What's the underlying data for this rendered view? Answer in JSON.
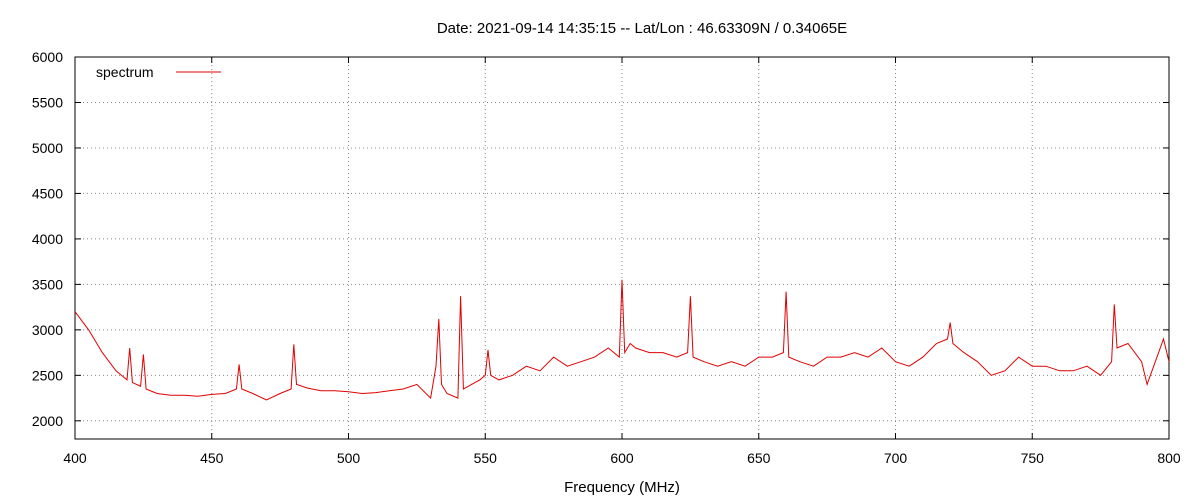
{
  "chart_data": {
    "type": "line",
    "title": "Date: 2021-09-14 14:35:15  --  Lat/Lon : 46.63309N / 0.34065E",
    "xlabel": "Frequency (MHz)",
    "ylabel": "",
    "xlim": [
      400,
      800
    ],
    "ylim": [
      1800,
      6000
    ],
    "xticks": [
      400,
      450,
      500,
      550,
      600,
      650,
      700,
      750,
      800
    ],
    "yticks": [
      2000,
      2500,
      3000,
      3500,
      4000,
      4500,
      5000,
      5500,
      6000
    ],
    "grid": true,
    "legend_position": "top-left",
    "series_color": "#e00000",
    "series": [
      {
        "name": "spectrum",
        "x": [
          400,
          405,
          410,
          415,
          419,
          420,
          421,
          424,
          425,
          426,
          430,
          435,
          440,
          445,
          450,
          455,
          459,
          460,
          461,
          465,
          470,
          475,
          479,
          480,
          481,
          485,
          490,
          495,
          500,
          505,
          510,
          515,
          520,
          525,
          530,
          532,
          533,
          534,
          536,
          540,
          541,
          542,
          545,
          548,
          550,
          551,
          552,
          555,
          560,
          565,
          570,
          575,
          580,
          585,
          590,
          595,
          599,
          600,
          601,
          603,
          605,
          610,
          615,
          620,
          624,
          625,
          626,
          630,
          635,
          640,
          645,
          650,
          655,
          659,
          660,
          661,
          665,
          670,
          675,
          680,
          685,
          690,
          695,
          700,
          705,
          710,
          715,
          719,
          720,
          721,
          725,
          730,
          735,
          740,
          745,
          750,
          755,
          760,
          765,
          770,
          775,
          779,
          780,
          781,
          785,
          790,
          792,
          795,
          798,
          800
        ],
        "values": [
          3200,
          3000,
          2750,
          2550,
          2450,
          2800,
          2420,
          2380,
          2730,
          2350,
          2300,
          2280,
          2280,
          2270,
          2290,
          2300,
          2350,
          2620,
          2350,
          2300,
          2230,
          2300,
          2350,
          2840,
          2400,
          2360,
          2330,
          2330,
          2320,
          2300,
          2310,
          2330,
          2350,
          2400,
          2250,
          2600,
          3120,
          2400,
          2300,
          2250,
          3370,
          2350,
          2400,
          2450,
          2500,
          2780,
          2500,
          2450,
          2500,
          2600,
          2550,
          2700,
          2600,
          2650,
          2700,
          2800,
          2700,
          3550,
          2750,
          2850,
          2800,
          2750,
          2750,
          2700,
          2750,
          3370,
          2700,
          2650,
          2600,
          2650,
          2600,
          2700,
          2700,
          2750,
          3420,
          2700,
          2650,
          2600,
          2700,
          2700,
          2750,
          2700,
          2800,
          2650,
          2600,
          2700,
          2850,
          2900,
          3080,
          2850,
          2750,
          2650,
          2500,
          2550,
          2700,
          2600,
          2600,
          2550,
          2550,
          2600,
          2500,
          2650,
          3280,
          2800,
          2850,
          2650,
          2400,
          2650,
          2900,
          2650
        ]
      }
    ]
  }
}
